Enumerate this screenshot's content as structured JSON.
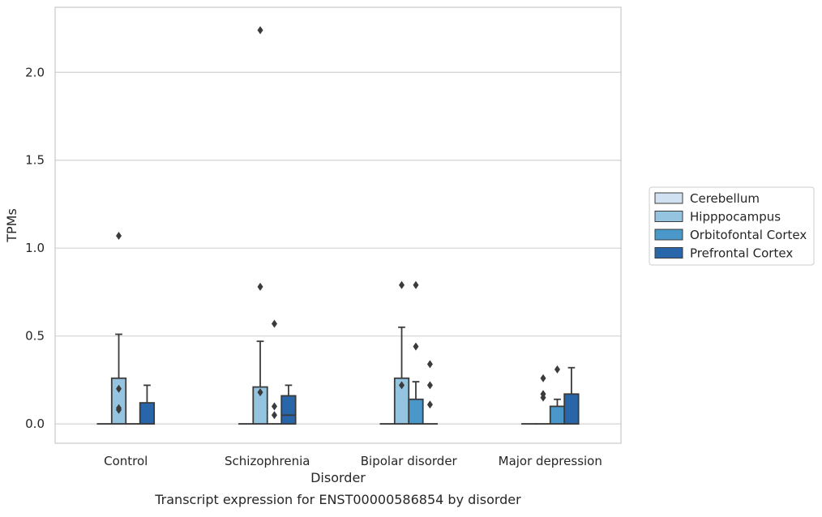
{
  "chart_data": {
    "type": "box",
    "title": "Transcript expression for ENST00000586854 by disorder",
    "xlabel": "Disorder",
    "ylabel": "TPMs",
    "categories": [
      "Control",
      "Schizophrenia",
      "Bipolar disorder",
      "Major depression"
    ],
    "ylim": [
      -0.11,
      2.37
    ],
    "yticks": [
      0.0,
      0.5,
      1.0,
      1.5,
      2.0
    ],
    "ytick_labels": [
      "0.0",
      "0.5",
      "1.0",
      "1.5",
      "2.0"
    ],
    "grid": "horizontal",
    "legend_position": "right",
    "series": [
      {
        "name": "Cerebellum",
        "color": "#d0e2f2",
        "boxes": [
          {
            "q1": 0,
            "median": 0,
            "q3": 0,
            "whisker_low": 0,
            "whisker_high": 0,
            "outliers": []
          },
          {
            "q1": 0,
            "median": 0,
            "q3": 0,
            "whisker_low": 0,
            "whisker_high": 0,
            "outliers": []
          },
          {
            "q1": 0,
            "median": 0,
            "q3": 0,
            "whisker_low": 0,
            "whisker_high": 0,
            "outliers": []
          },
          {
            "q1": 0,
            "median": 0,
            "q3": 0,
            "whisker_low": 0,
            "whisker_high": 0,
            "outliers": []
          }
        ]
      },
      {
        "name": "Hipppocampus",
        "color": "#94c4df",
        "boxes": [
          {
            "q1": 0,
            "median": 0,
            "q3": 0.26,
            "whisker_low": 0,
            "whisker_high": 0.51,
            "outliers": [
              0.2,
              0.09,
              0.08,
              1.07
            ]
          },
          {
            "q1": 0,
            "median": 0,
            "q3": 0.21,
            "whisker_low": 0,
            "whisker_high": 0.47,
            "outliers": [
              0.18,
              0.78,
              2.24
            ]
          },
          {
            "q1": 0,
            "median": 0,
            "q3": 0.26,
            "whisker_low": 0,
            "whisker_high": 0.55,
            "outliers": [
              0.22,
              0.79
            ]
          },
          {
            "q1": 0,
            "median": 0,
            "q3": 0,
            "whisker_low": 0,
            "whisker_high": 0,
            "outliers": [
              0.26,
              0.17,
              0.15
            ]
          }
        ]
      },
      {
        "name": "Orbitofontal Cortex",
        "color": "#4a98c9",
        "boxes": [
          {
            "q1": 0,
            "median": 0,
            "q3": 0,
            "whisker_low": 0,
            "whisker_high": 0,
            "outliers": []
          },
          {
            "q1": 0,
            "median": 0,
            "q3": 0,
            "whisker_low": 0,
            "whisker_high": 0,
            "outliers": [
              0.1,
              0.05,
              0.57
            ]
          },
          {
            "q1": 0,
            "median": 0,
            "q3": 0.14,
            "whisker_low": 0,
            "whisker_high": 0.24,
            "outliers": [
              0.79,
              0.44
            ]
          },
          {
            "q1": 0,
            "median": 0,
            "q3": 0.1,
            "whisker_low": 0,
            "whisker_high": 0.14,
            "outliers": [
              0.31
            ]
          }
        ]
      },
      {
        "name": "Prefrontal Cortex",
        "color": "#2866a9",
        "boxes": [
          {
            "q1": 0,
            "median": 0,
            "q3": 0.12,
            "whisker_low": 0,
            "whisker_high": 0.22,
            "outliers": []
          },
          {
            "q1": 0,
            "median": 0.05,
            "q3": 0.16,
            "whisker_low": 0,
            "whisker_high": 0.22,
            "outliers": []
          },
          {
            "q1": 0,
            "median": 0,
            "q3": 0,
            "whisker_low": 0,
            "whisker_high": 0,
            "outliers": [
              0.34,
              0.22,
              0.11
            ]
          },
          {
            "q1": 0,
            "median": 0,
            "q3": 0.17,
            "whisker_low": 0,
            "whisker_high": 0.32,
            "outliers": []
          }
        ]
      }
    ]
  }
}
